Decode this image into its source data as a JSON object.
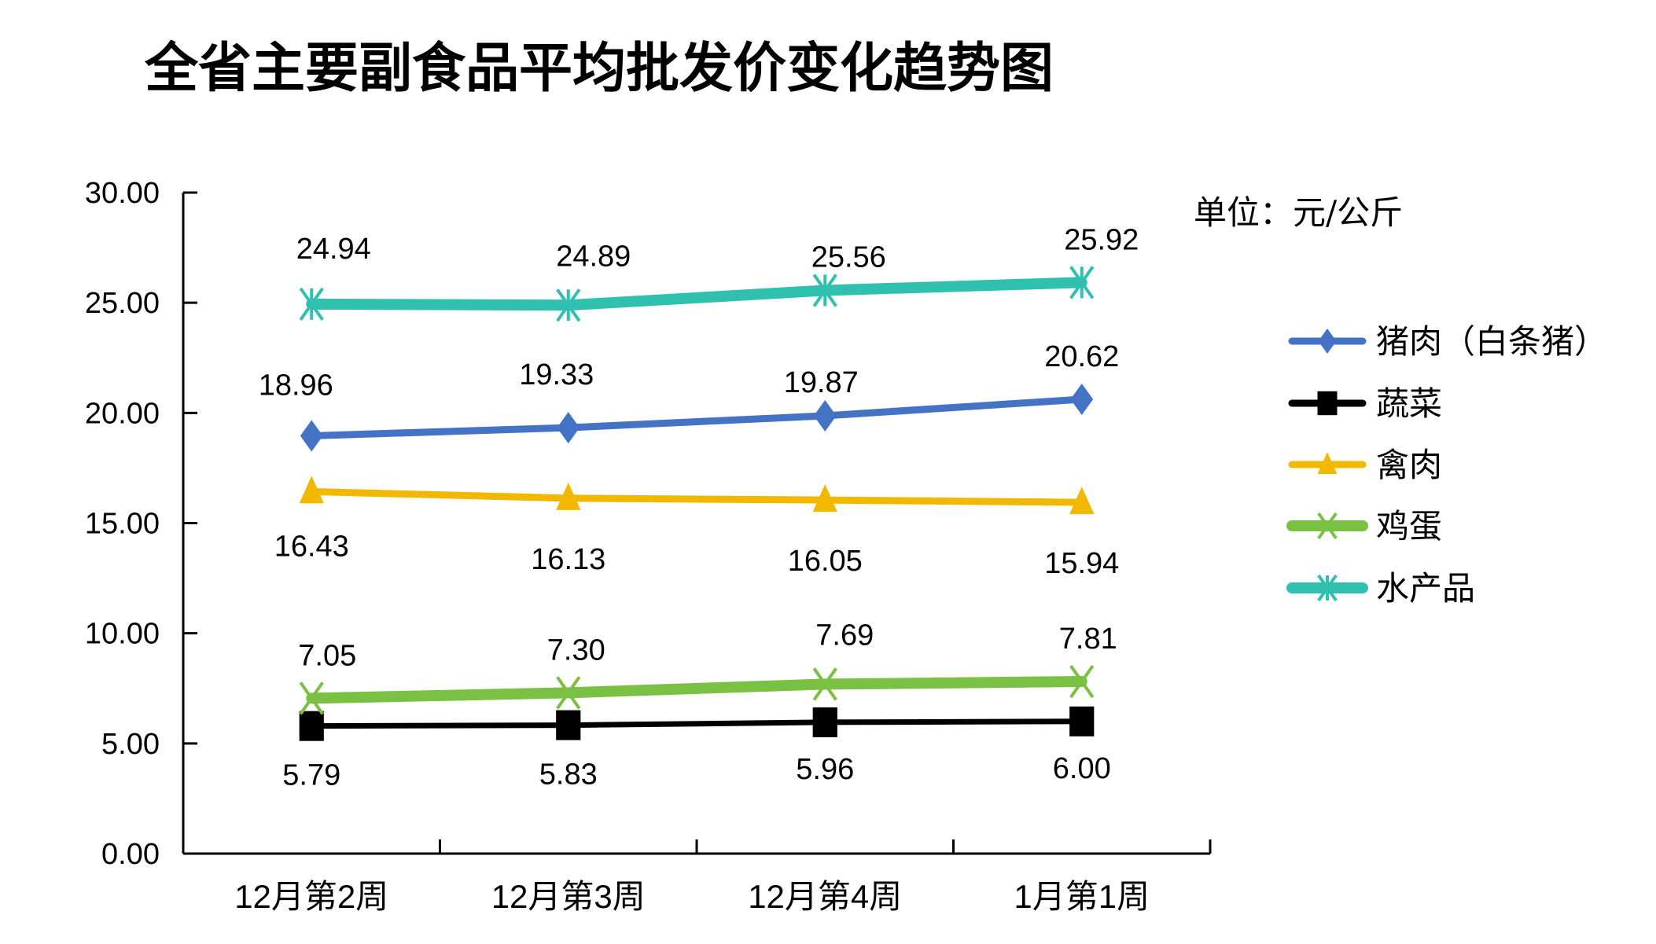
{
  "chart_data": {
    "type": "line",
    "title": "全省主要副食品平均批发价变化趋势图",
    "unit_label": "单位：元/公斤",
    "xlabel": "",
    "ylabel": "",
    "ylim": [
      0,
      30
    ],
    "y_ticks": [
      "0.00",
      "5.00",
      "10.00",
      "15.00",
      "20.00",
      "25.00",
      "30.00"
    ],
    "y_tick_values": [
      0,
      5,
      10,
      15,
      20,
      25,
      30
    ],
    "categories": [
      "12月第2周",
      "12月第3周",
      "12月第4周",
      "1月第1周"
    ],
    "grid": false,
    "legend_position": "right",
    "series": [
      {
        "name": "猪肉（白条猪）",
        "values": [
          18.96,
          19.33,
          19.87,
          20.62
        ],
        "labels": [
          "18.96",
          "19.33",
          "19.87",
          "20.62"
        ],
        "color": "#4472C4",
        "marker": "diamond",
        "label_pos": "above"
      },
      {
        "name": "蔬菜",
        "values": [
          5.79,
          5.83,
          5.96,
          6.0
        ],
        "labels": [
          "5.79",
          "5.83",
          "5.96",
          "6.00"
        ],
        "color": "#000000",
        "marker": "square",
        "label_pos": "below"
      },
      {
        "name": "禽肉",
        "values": [
          16.43,
          16.13,
          16.05,
          15.94
        ],
        "labels": [
          "16.43",
          "16.13",
          "16.05",
          "15.94"
        ],
        "color": "#F2B800",
        "marker": "triangle",
        "label_pos": "below"
      },
      {
        "name": "鸡蛋",
        "values": [
          7.05,
          7.3,
          7.69,
          7.81
        ],
        "labels": [
          "7.05",
          "7.30",
          "7.69",
          "7.81"
        ],
        "color": "#7AC043",
        "marker": "x",
        "label_pos": "above"
      },
      {
        "name": "水产品",
        "values": [
          24.94,
          24.89,
          25.56,
          25.92
        ],
        "labels": [
          "24.94",
          "24.89",
          "25.56",
          "25.92"
        ],
        "color": "#2FC0B0",
        "marker": "star",
        "label_pos": "above"
      }
    ]
  }
}
